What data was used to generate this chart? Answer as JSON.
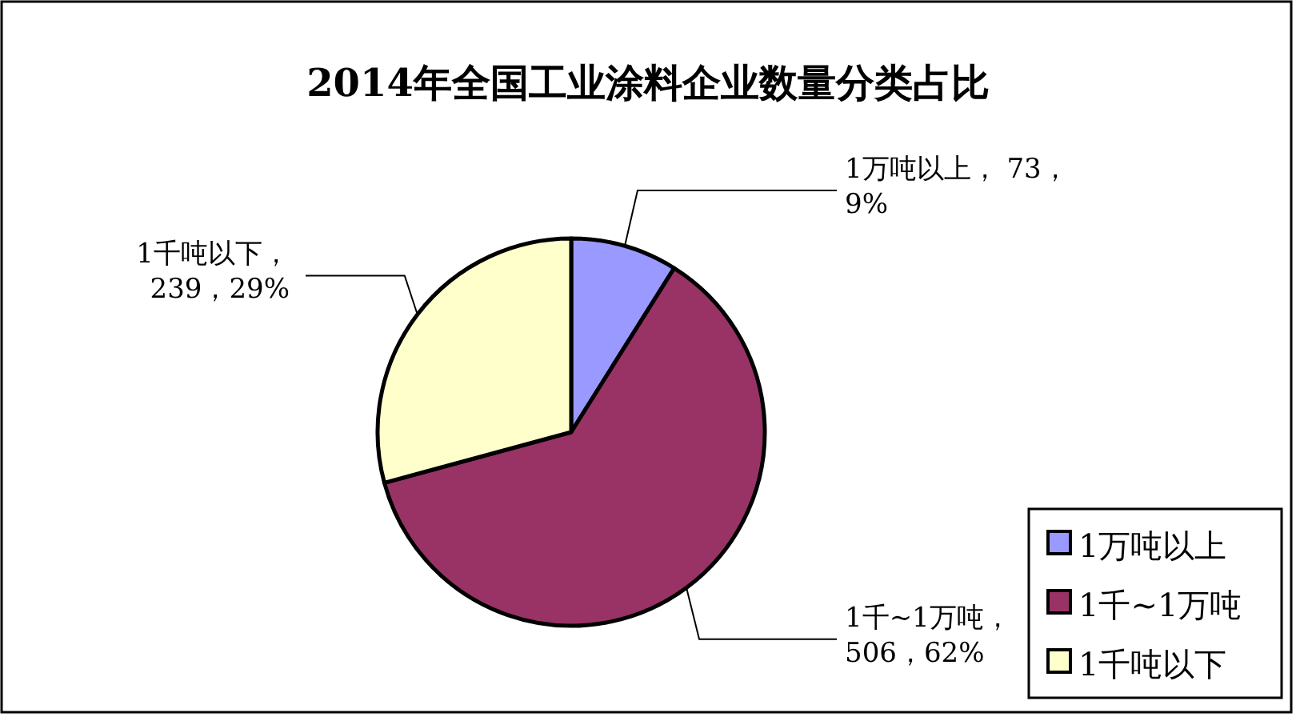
{
  "chart_data": {
    "type": "pie",
    "title": "2014年全国工业涂料企业数量分类占比",
    "categories": [
      "1万吨以上",
      "1千~1万吨",
      "1千吨以下"
    ],
    "values": [
      73,
      506,
      239
    ],
    "colors": [
      "#9999ff",
      "#993366",
      "#ffffcc"
    ],
    "value_labels": [
      "1万吨以上，  73，\n9%",
      "1千~1万吨，\n506，62%",
      "1千吨以下，\n239，29%"
    ],
    "legend": "bottom right"
  }
}
